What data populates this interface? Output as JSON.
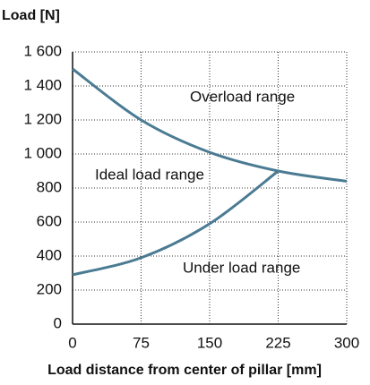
{
  "chart_data": {
    "type": "line",
    "y_label": "Load [N]",
    "x_label": "Load distance from center of pillar [mm]",
    "x": [
      0,
      75,
      150,
      225,
      300
    ],
    "series": [
      {
        "color": "#4a7b93",
        "values": [
          1500,
          1200,
          1010,
          900,
          840
        ]
      },
      {
        "color": "#4a7b93",
        "values": [
          290,
          390,
          590,
          900,
          null
        ]
      }
    ],
    "annotations": [
      "Overload range",
      "Ideal load range",
      "Under load range"
    ],
    "xlim": [
      0,
      300
    ],
    "xticks": [
      0,
      75,
      150,
      225,
      300
    ],
    "ylim": [
      0,
      1600
    ],
    "yticks": [
      0,
      200,
      400,
      600,
      800,
      {
        "value": 1000,
        "label": "1 000"
      },
      {
        "value": 1200,
        "label": "1 200"
      },
      {
        "value": 1400,
        "label": "1 400"
      },
      {
        "value": 1600,
        "label": "1 600"
      }
    ],
    "grid": true
  }
}
